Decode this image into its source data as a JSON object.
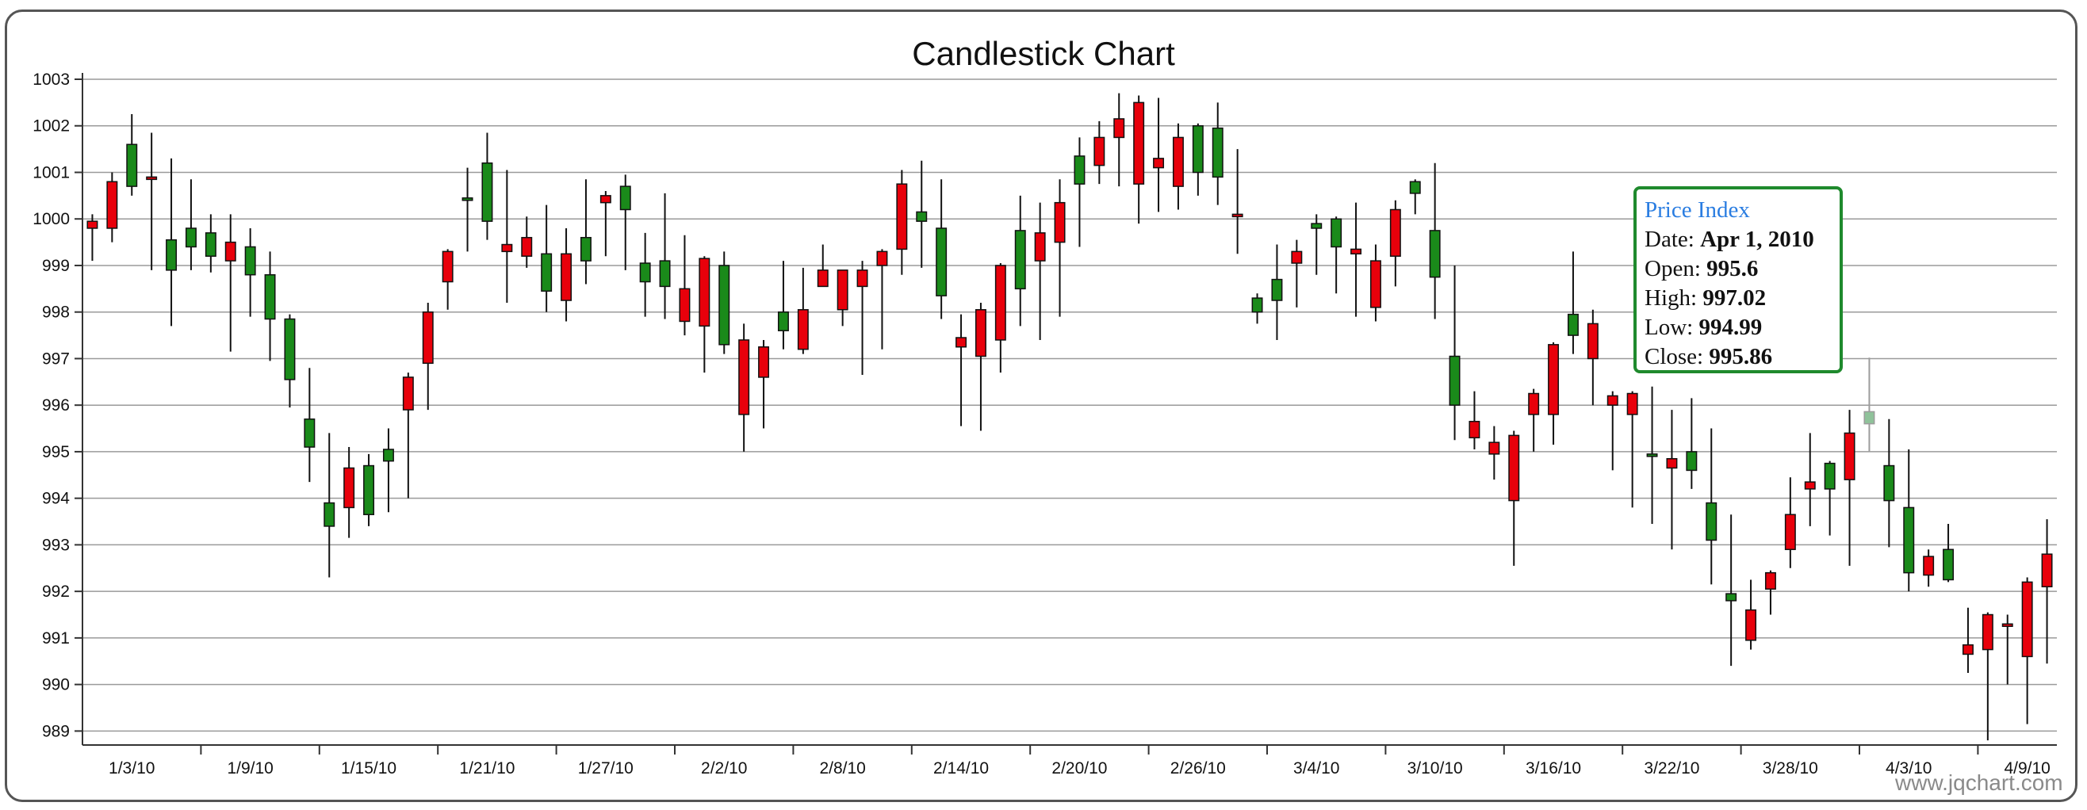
{
  "chart_data": {
    "type": "candlestick",
    "title": "Candlestick Chart",
    "ylim": [
      988.7,
      1003
    ],
    "yticks": [
      989,
      990,
      991,
      992,
      993,
      994,
      995,
      996,
      997,
      998,
      999,
      1000,
      1001,
      1002,
      1003
    ],
    "xtick_labels": [
      "1/3/10",
      "1/9/10",
      "1/15/10",
      "1/21/10",
      "1/27/10",
      "2/2/10",
      "2/8/10",
      "2/14/10",
      "2/20/10",
      "2/26/10",
      "3/4/10",
      "3/10/10",
      "3/16/10",
      "3/22/10",
      "3/28/10",
      "4/3/10",
      "4/9/10"
    ],
    "grid": true,
    "up_color": "#1a8a1a",
    "down_color": "#e8000b",
    "series": [
      {
        "open": 999.95,
        "high": 1000.1,
        "low": 999.1,
        "close": 999.8
      },
      {
        "open": 1000.8,
        "high": 1001.0,
        "low": 999.5,
        "close": 999.8
      },
      {
        "open": 1000.7,
        "high": 1002.25,
        "low": 1000.5,
        "close": 1001.6
      },
      {
        "open": 1000.9,
        "high": 1001.85,
        "low": 998.9,
        "close": 1000.85
      },
      {
        "open": 998.9,
        "high": 1001.3,
        "low": 997.7,
        "close": 999.55
      },
      {
        "open": 999.4,
        "high": 1000.85,
        "low": 998.9,
        "close": 999.8
      },
      {
        "open": 999.2,
        "high": 1000.1,
        "low": 998.85,
        "close": 999.7
      },
      {
        "open": 999.5,
        "high": 1000.1,
        "low": 997.15,
        "close": 999.1
      },
      {
        "open": 998.8,
        "high": 999.8,
        "low": 997.9,
        "close": 999.4
      },
      {
        "open": 997.85,
        "high": 999.3,
        "low": 996.95,
        "close": 998.8
      },
      {
        "open": 996.55,
        "high": 997.95,
        "low": 995.95,
        "close": 997.85
      },
      {
        "open": 995.1,
        "high": 996.8,
        "low": 994.35,
        "close": 995.7
      },
      {
        "open": 993.4,
        "high": 995.4,
        "low": 992.3,
        "close": 993.9
      },
      {
        "open": 994.65,
        "high": 995.1,
        "low": 993.15,
        "close": 993.8
      },
      {
        "open": 993.65,
        "high": 994.95,
        "low": 993.4,
        "close": 994.7
      },
      {
        "open": 994.8,
        "high": 995.5,
        "low": 993.7,
        "close": 995.05
      },
      {
        "open": 996.6,
        "high": 996.7,
        "low": 994.0,
        "close": 995.9
      },
      {
        "open": 998.0,
        "high": 998.2,
        "low": 995.9,
        "close": 996.9
      },
      {
        "open": 999.3,
        "high": 999.35,
        "low": 998.05,
        "close": 998.65
      },
      {
        "open": 1000.45,
        "high": 1001.1,
        "low": 999.3,
        "close": 1000.45
      },
      {
        "open": 999.95,
        "high": 1001.85,
        "low": 999.55,
        "close": 1001.2
      },
      {
        "open": 999.45,
        "high": 1001.05,
        "low": 998.2,
        "close": 999.3
      },
      {
        "open": 999.6,
        "high": 1000.05,
        "low": 998.95,
        "close": 999.2
      },
      {
        "open": 998.45,
        "high": 1000.3,
        "low": 998.0,
        "close": 999.25
      },
      {
        "open": 999.25,
        "high": 999.8,
        "low": 997.8,
        "close": 998.25
      },
      {
        "open": 999.1,
        "high": 1000.85,
        "low": 998.6,
        "close": 999.6
      },
      {
        "open": 1000.5,
        "high": 1000.6,
        "low": 999.2,
        "close": 1000.35
      },
      {
        "open": 1000.2,
        "high": 1000.95,
        "low": 998.9,
        "close": 1000.7
      },
      {
        "open": 998.65,
        "high": 999.7,
        "low": 997.9,
        "close": 999.05
      },
      {
        "open": 998.55,
        "high": 1000.55,
        "low": 997.85,
        "close": 999.1
      },
      {
        "open": 998.5,
        "high": 999.65,
        "low": 997.5,
        "close": 997.8
      },
      {
        "open": 999.15,
        "high": 999.2,
        "low": 996.7,
        "close": 997.7
      },
      {
        "open": 997.3,
        "high": 999.3,
        "low": 997.1,
        "close": 999.0
      },
      {
        "open": 997.4,
        "high": 997.75,
        "low": 995.0,
        "close": 995.8
      },
      {
        "open": 997.25,
        "high": 997.4,
        "low": 995.5,
        "close": 996.6
      },
      {
        "open": 997.6,
        "high": 999.1,
        "low": 997.2,
        "close": 998.0
      },
      {
        "open": 998.05,
        "high": 998.95,
        "low": 997.1,
        "close": 997.2
      },
      {
        "open": 998.9,
        "high": 999.45,
        "low": 998.55,
        "close": 998.55
      },
      {
        "open": 998.9,
        "high": 998.9,
        "low": 997.7,
        "close": 998.05
      },
      {
        "open": 998.9,
        "high": 999.1,
        "low": 996.65,
        "close": 998.55
      },
      {
        "open": 999.3,
        "high": 999.35,
        "low": 997.2,
        "close": 999.0
      },
      {
        "open": 1000.75,
        "high": 1001.05,
        "low": 998.8,
        "close": 999.35
      },
      {
        "open": 999.95,
        "high": 1001.25,
        "low": 998.95,
        "close": 1000.15
      },
      {
        "open": 998.35,
        "high": 1000.85,
        "low": 997.85,
        "close": 999.8
      },
      {
        "open": 997.45,
        "high": 997.95,
        "low": 995.55,
        "close": 997.25
      },
      {
        "open": 998.05,
        "high": 998.2,
        "low": 995.45,
        "close": 997.05
      },
      {
        "open": 999.0,
        "high": 999.05,
        "low": 996.7,
        "close": 997.4
      },
      {
        "open": 998.5,
        "high": 1000.5,
        "low": 997.7,
        "close": 999.75
      },
      {
        "open": 999.7,
        "high": 1000.35,
        "low": 997.4,
        "close": 999.1
      },
      {
        "open": 1000.35,
        "high": 1000.85,
        "low": 997.9,
        "close": 999.5
      },
      {
        "open": 1000.75,
        "high": 1001.75,
        "low": 999.4,
        "close": 1001.35
      },
      {
        "open": 1001.75,
        "high": 1002.1,
        "low": 1000.75,
        "close": 1001.15
      },
      {
        "open": 1002.15,
        "high": 1002.7,
        "low": 1000.7,
        "close": 1001.75
      },
      {
        "open": 1002.5,
        "high": 1002.65,
        "low": 999.9,
        "close": 1000.75
      },
      {
        "open": 1001.3,
        "high": 1002.6,
        "low": 1000.15,
        "close": 1001.1
      },
      {
        "open": 1001.75,
        "high": 1002.05,
        "low": 1000.2,
        "close": 1000.7
      },
      {
        "open": 1001.0,
        "high": 1002.05,
        "low": 1000.5,
        "close": 1002.0
      },
      {
        "open": 1000.9,
        "high": 1002.5,
        "low": 1000.3,
        "close": 1001.95
      },
      {
        "open": 1000.1,
        "high": 1001.5,
        "low": 999.25,
        "close": 1000.05
      },
      {
        "open": 998.0,
        "high": 998.4,
        "low": 997.75,
        "close": 998.3
      },
      {
        "open": 998.25,
        "high": 999.45,
        "low": 997.4,
        "close": 998.7
      },
      {
        "open": 999.3,
        "high": 999.55,
        "low": 998.1,
        "close": 999.05
      },
      {
        "open": 999.8,
        "high": 1000.1,
        "low": 998.8,
        "close": 999.9
      },
      {
        "open": 999.4,
        "high": 1000.05,
        "low": 998.4,
        "close": 1000.0
      },
      {
        "open": 999.35,
        "high": 1000.35,
        "low": 997.9,
        "close": 999.25
      },
      {
        "open": 999.1,
        "high": 999.45,
        "low": 997.8,
        "close": 998.1
      },
      {
        "open": 1000.2,
        "high": 1000.4,
        "low": 998.55,
        "close": 999.2
      },
      {
        "open": 1000.55,
        "high": 1000.85,
        "low": 1000.1,
        "close": 1000.8
      },
      {
        "open": 998.75,
        "high": 1001.2,
        "low": 997.85,
        "close": 999.75
      },
      {
        "open": 996.0,
        "high": 999.0,
        "low": 995.25,
        "close": 997.05
      },
      {
        "open": 995.65,
        "high": 996.3,
        "low": 995.05,
        "close": 995.3
      },
      {
        "open": 995.2,
        "high": 995.55,
        "low": 994.4,
        "close": 994.95
      },
      {
        "open": 995.35,
        "high": 995.45,
        "low": 992.55,
        "close": 993.95
      },
      {
        "open": 996.25,
        "high": 996.35,
        "low": 995.0,
        "close": 995.8
      },
      {
        "open": 997.3,
        "high": 997.35,
        "low": 995.15,
        "close": 995.8
      },
      {
        "open": 997.5,
        "high": 999.3,
        "low": 997.1,
        "close": 997.95
      },
      {
        "open": 997.75,
        "high": 998.05,
        "low": 996.0,
        "close": 997.0
      },
      {
        "open": 996.2,
        "high": 996.3,
        "low": 994.6,
        "close": 996.0
      },
      {
        "open": 996.25,
        "high": 996.3,
        "low": 993.8,
        "close": 995.8
      },
      {
        "open": 994.95,
        "high": 996.4,
        "low": 993.45,
        "close": 994.95
      },
      {
        "open": 994.85,
        "high": 995.9,
        "low": 992.9,
        "close": 994.65
      },
      {
        "open": 994.6,
        "high": 996.15,
        "low": 994.2,
        "close": 995.0
      },
      {
        "open": 993.1,
        "high": 995.5,
        "low": 992.15,
        "close": 993.9
      },
      {
        "open": 991.8,
        "high": 993.65,
        "low": 990.4,
        "close": 991.95
      },
      {
        "open": 991.6,
        "high": 992.25,
        "low": 990.75,
        "close": 990.95
      },
      {
        "open": 992.4,
        "high": 992.45,
        "low": 991.5,
        "close": 992.05
      },
      {
        "open": 993.65,
        "high": 994.45,
        "low": 992.5,
        "close": 992.9
      },
      {
        "open": 994.35,
        "high": 995.4,
        "low": 993.4,
        "close": 994.2
      },
      {
        "open": 994.2,
        "high": 994.8,
        "low": 993.2,
        "close": 994.75
      },
      {
        "open": 995.4,
        "high": 995.9,
        "low": 992.55,
        "close": 994.4
      },
      {
        "open": 995.6,
        "high": 997.02,
        "low": 994.99,
        "close": 995.86
      },
      {
        "open": 993.95,
        "high": 995.7,
        "low": 992.95,
        "close": 994.7
      },
      {
        "open": 992.4,
        "high": 995.05,
        "low": 992.0,
        "close": 993.8
      },
      {
        "open": 992.75,
        "high": 992.9,
        "low": 992.1,
        "close": 992.35
      },
      {
        "open": 992.25,
        "high": 993.45,
        "low": 992.2,
        "close": 992.9
      },
      {
        "open": 990.85,
        "high": 991.65,
        "low": 990.25,
        "close": 990.65
      },
      {
        "open": 991.5,
        "high": 991.55,
        "low": 988.8,
        "close": 990.75
      },
      {
        "open": 991.3,
        "high": 991.5,
        "low": 990.0,
        "close": 991.25
      },
      {
        "open": 992.2,
        "high": 992.3,
        "low": 989.15,
        "close": 990.6
      },
      {
        "open": 992.8,
        "high": 993.55,
        "low": 990.45,
        "close": 992.1
      }
    ],
    "highlight_index": 90,
    "tooltip": {
      "heading": "Price Index",
      "date_label": "Date:",
      "date": "Apr 1, 2010",
      "open_label": "Open:",
      "open": "995.6",
      "high_label": "High:",
      "high": "997.02",
      "low_label": "Low:",
      "low": "994.99",
      "close_label": "Close:",
      "close": "995.86"
    }
  },
  "watermark": "www.jqchart.com"
}
